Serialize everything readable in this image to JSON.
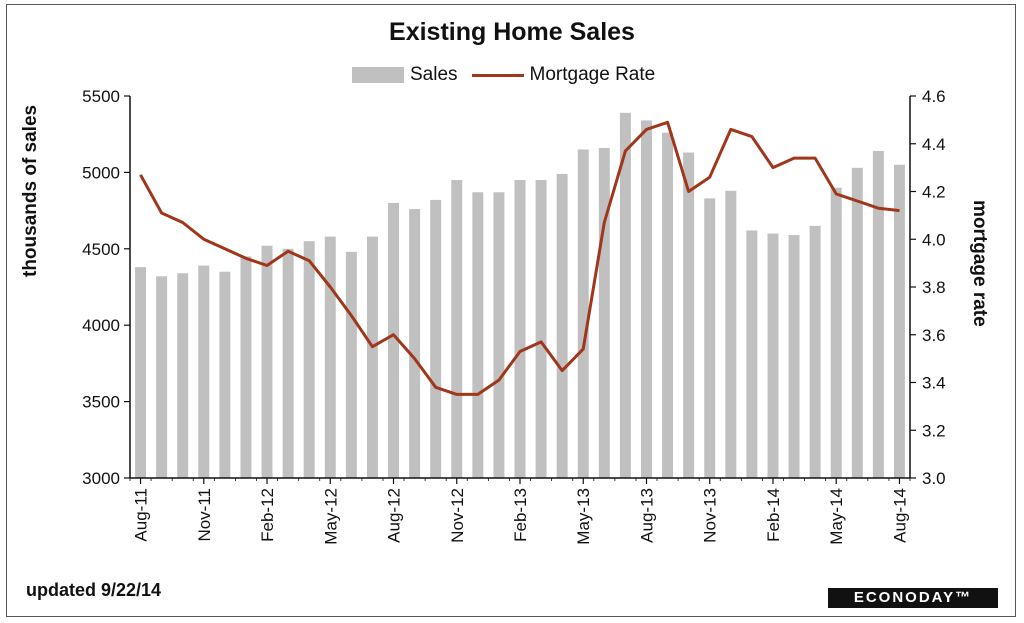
{
  "chart_data": {
    "type": "bar+line",
    "title": "Existing Home Sales",
    "legend": [
      "Sales",
      "Mortgage Rate"
    ],
    "legend_position": "top-center",
    "ylabel": "thousands of sales",
    "ylabel_right": "mortgage rate",
    "ylim": [
      3000,
      5500
    ],
    "ylim_right": [
      3.0,
      4.6
    ],
    "yticks": [
      "5500",
      "5000",
      "4500",
      "4000",
      "3500",
      "3000"
    ],
    "yticks_right": [
      "4.6",
      "4.4",
      "4.2",
      "4.0",
      "3.8",
      "3.6",
      "3.4",
      "3.2",
      "3.0"
    ],
    "x_tick_labels": [
      "Aug-11",
      "Nov-11",
      "Feb-12",
      "May-12",
      "Aug-12",
      "Nov-12",
      "Feb-13",
      "May-13",
      "Aug-13",
      "Nov-13",
      "Feb-14",
      "May-14",
      "Aug-14"
    ],
    "categories": [
      "Aug-11",
      "Sep-11",
      "Oct-11",
      "Nov-11",
      "Dec-11",
      "Jan-12",
      "Feb-12",
      "Mar-12",
      "Apr-12",
      "May-12",
      "Jun-12",
      "Jul-12",
      "Aug-12",
      "Sep-12",
      "Oct-12",
      "Nov-12",
      "Dec-12",
      "Jan-13",
      "Feb-13",
      "Mar-13",
      "Apr-13",
      "May-13",
      "Jun-13",
      "Jul-13",
      "Aug-13",
      "Sep-13",
      "Oct-13",
      "Nov-13",
      "Dec-13",
      "Jan-14",
      "Feb-14",
      "Mar-14",
      "Apr-14",
      "May-14",
      "Jun-14",
      "Jul-14",
      "Aug-14"
    ],
    "series": [
      {
        "name": "Sales",
        "type": "bar",
        "color": "#c0c0c0",
        "values": [
          4380,
          4320,
          4340,
          4390,
          4350,
          4450,
          4520,
          4500,
          4550,
          4580,
          4480,
          4580,
          4800,
          4760,
          4820,
          4950,
          4870,
          4870,
          4950,
          4950,
          4990,
          5150,
          5160,
          5390,
          5340,
          5260,
          5130,
          4830,
          4880,
          4620,
          4600,
          4590,
          4650,
          4900,
          5030,
          5140,
          5050
        ]
      },
      {
        "name": "Mortgage Rate",
        "type": "line",
        "axis": "right",
        "color": "#a0361a",
        "values": [
          4.27,
          4.11,
          4.07,
          4.0,
          3.96,
          3.92,
          3.89,
          3.95,
          3.91,
          3.8,
          3.68,
          3.55,
          3.6,
          3.5,
          3.38,
          3.35,
          3.35,
          3.41,
          3.53,
          3.57,
          3.45,
          3.54,
          4.07,
          4.37,
          4.46,
          4.49,
          4.2,
          4.26,
          4.46,
          4.43,
          4.3,
          4.34,
          4.34,
          4.19,
          4.16,
          4.13,
          4.12
        ]
      }
    ]
  },
  "footer": {
    "updated": "updated 9/22/14",
    "logo": "ECONODAY™"
  }
}
